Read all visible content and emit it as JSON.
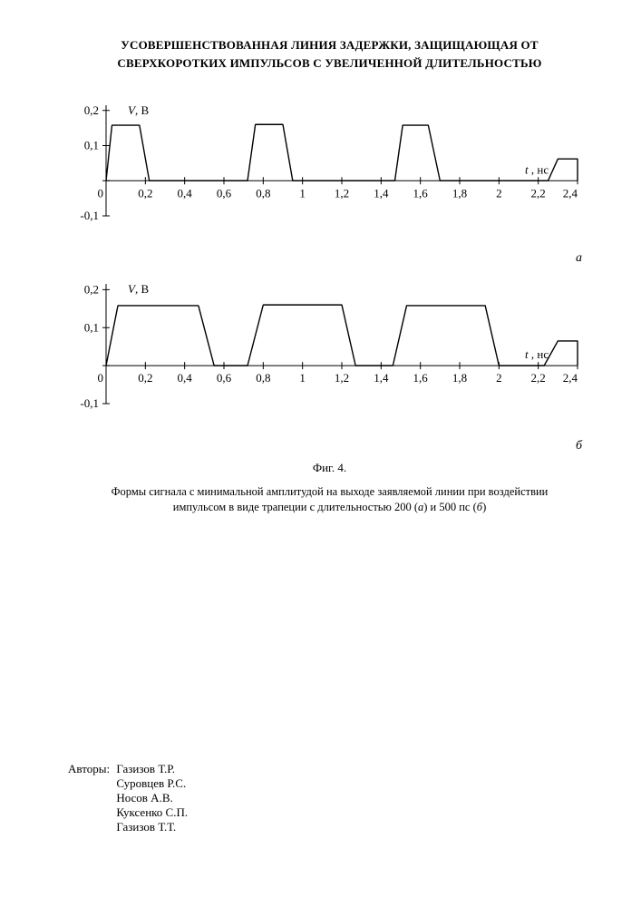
{
  "title_line1": "УСОВЕРШЕНСТВОВАННАЯ ЛИНИЯ ЗАДЕРЖКИ, ЗАЩИЩАЮЩАЯ ОТ",
  "title_line2": "СВЕРХКОРОТКИХ ИМПУЛЬСОВ С УВЕЛИЧЕННОЙ ДЛИТЕЛЬНОСТЬЮ",
  "chart_a": {
    "ylabel": "V, В",
    "xlabel": "t , нс",
    "sublabel": "а",
    "xlim": [
      0,
      2.4
    ],
    "ylim": [
      -0.1,
      0.22
    ],
    "xticks": [
      "0",
      "0,2",
      "0,4",
      "0,6",
      "0,8",
      "1",
      "1,2",
      "1,4",
      "1,6",
      "1,8",
      "2",
      "2,2",
      "2,4"
    ],
    "xtick_vals": [
      0,
      0.2,
      0.4,
      0.6,
      0.8,
      1.0,
      1.2,
      1.4,
      1.6,
      1.8,
      2.0,
      2.2,
      2.4
    ],
    "yticks": [
      "-0,1",
      "0",
      "0,1",
      "0,2"
    ],
    "ytick_vals": [
      -0.1,
      0,
      0.1,
      0.2
    ],
    "pulses": [
      {
        "t0": 0.0,
        "t1": 0.03,
        "t2": 0.17,
        "t3": 0.22,
        "h": 0.158
      },
      {
        "t0": 0.72,
        "t1": 0.76,
        "t2": 0.9,
        "t3": 0.95,
        "h": 0.16
      },
      {
        "t0": 1.47,
        "t1": 1.51,
        "t2": 1.64,
        "t3": 1.7,
        "h": 0.158
      },
      {
        "t0": 2.25,
        "t1": 2.3,
        "t2": 2.4,
        "t3": 2.4,
        "h": 0.062
      }
    ],
    "line_color": "#000000",
    "line_width": 1.4
  },
  "chart_b": {
    "ylabel": "V, В",
    "xlabel": "t , нс",
    "sublabel": "б",
    "xlim": [
      0,
      2.4
    ],
    "ylim": [
      -0.1,
      0.22
    ],
    "xticks": [
      "0",
      "0,2",
      "0,4",
      "0,6",
      "0,8",
      "1",
      "1,2",
      "1,4",
      "1,6",
      "1,8",
      "2",
      "2,2",
      "2,4"
    ],
    "xtick_vals": [
      0,
      0.2,
      0.4,
      0.6,
      0.8,
      1.0,
      1.2,
      1.4,
      1.6,
      1.8,
      2.0,
      2.2,
      2.4
    ],
    "yticks": [
      "-0,1",
      "0",
      "0,1",
      "0,2"
    ],
    "ytick_vals": [
      -0.1,
      0,
      0.1,
      0.2
    ],
    "pulses": [
      {
        "t0": 0.0,
        "t1": 0.06,
        "t2": 0.47,
        "t3": 0.55,
        "h": 0.158
      },
      {
        "t0": 0.72,
        "t1": 0.8,
        "t2": 1.2,
        "t3": 1.27,
        "h": 0.16
      },
      {
        "t0": 1.46,
        "t1": 1.53,
        "t2": 1.93,
        "t3": 2.0,
        "h": 0.158
      },
      {
        "t0": 2.23,
        "t1": 2.3,
        "t2": 2.4,
        "t3": 2.4,
        "h": 0.065
      }
    ],
    "line_color": "#000000",
    "line_width": 1.4
  },
  "fig_caption": "Фиг. 4.",
  "fig_desc_line1": "Формы сигнала с минимальной амплитудой на выходе заявляемой линии при воздействии",
  "fig_desc_line2_pre": "импульсом в виде трапеции с длительностью 200 (",
  "fig_desc_a": "а",
  "fig_desc_mid": ") и 500 пс (",
  "fig_desc_b": "б",
  "fig_desc_line2_post": ")",
  "authors_label": "Авторы:",
  "authors": [
    "Газизов Т.Р.",
    "Суровцев Р.С.",
    "Носов А.В.",
    "Куксенко С.П.",
    "Газизов Т.Т."
  ]
}
